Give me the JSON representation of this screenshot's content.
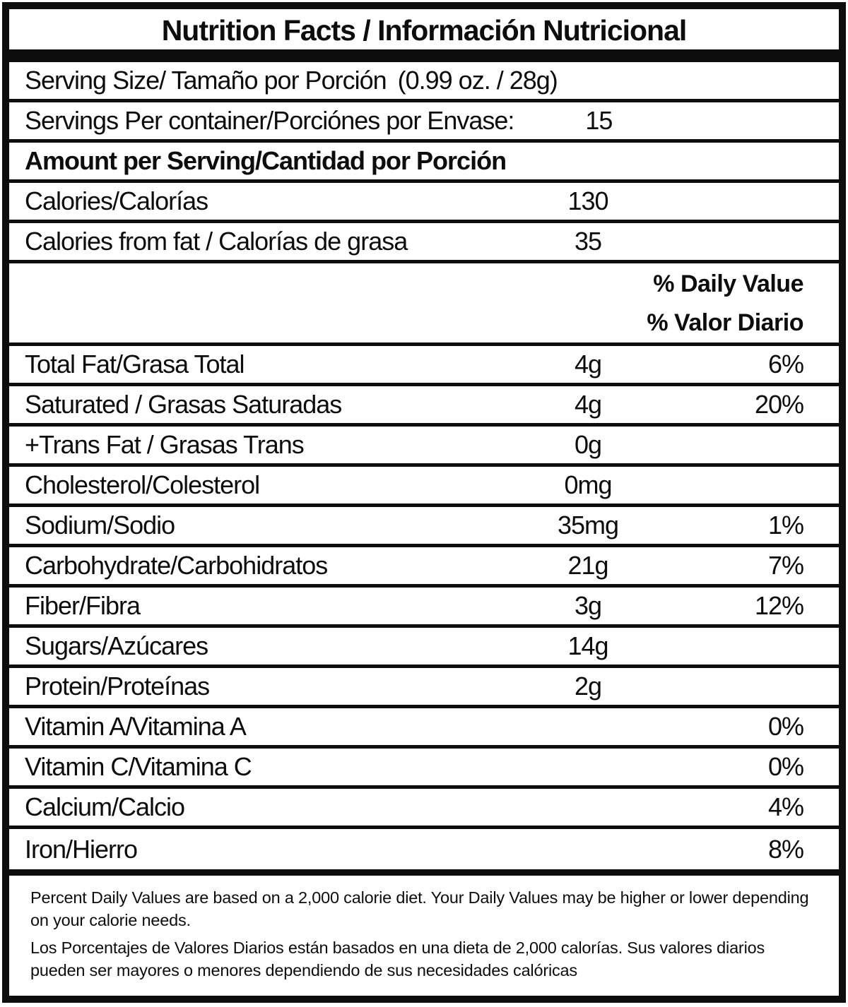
{
  "accent_color": "#0d0d0d",
  "title": "Nutrition Facts / Información Nutricional",
  "serving": {
    "size_label": "Serving Size/ Tamaño por Porción",
    "size_value": "(0.99 oz. / 28g)",
    "per_container_label": "Servings Per container/Porciónes por Envase:",
    "per_container_value": "15"
  },
  "section_headers": {
    "amount_per_serving": "Amount per Serving/Cantidad por Porción",
    "daily_value_en": "% Daily Value",
    "daily_value_es": "% Valor Diario"
  },
  "calorie_rows": [
    {
      "label": "Calories/Calorías",
      "amount": "130",
      "dv": ""
    },
    {
      "label": "Calories from fat / Calorías de grasa",
      "amount": "35",
      "dv": ""
    }
  ],
  "nutrient_rows": [
    {
      "label": "Total Fat/Grasa Total",
      "amount": "4g",
      "dv": "6%"
    },
    {
      "label": "Saturated / Grasas Saturadas",
      "amount": "4g",
      "dv": "20%"
    },
    {
      "label": "+Trans Fat / Grasas Trans",
      "amount": "0g",
      "dv": ""
    },
    {
      "label": "Cholesterol/Colesterol",
      "amount": "0mg",
      "dv": ""
    },
    {
      "label": "Sodium/Sodio",
      "amount": "35mg",
      "dv": "1%"
    },
    {
      "label": "Carbohydrate/Carbohidratos",
      "amount": "21g",
      "dv": "7%"
    },
    {
      "label": "Fiber/Fibra",
      "amount": "3g",
      "dv": "12%"
    },
    {
      "label": "Sugars/Azúcares",
      "amount": "14g",
      "dv": ""
    },
    {
      "label": "Protein/Proteínas",
      "amount": "2g",
      "dv": ""
    }
  ],
  "micronutrient_rows": [
    {
      "label": "Vitamin A/Vitamina A",
      "amount": "",
      "dv": "0%"
    },
    {
      "label": "Vitamin C/Vitamina C",
      "amount": "",
      "dv": "0%"
    },
    {
      "label": "Calcium/Calcio",
      "amount": "",
      "dv": "4%"
    },
    {
      "label": "Iron/Hierro",
      "amount": "",
      "dv": "8%"
    }
  ],
  "footnotes": {
    "en": "Percent Daily Values are based on a 2,000 calorie diet. Your Daily Values may be higher or lower depending on your calorie needs.",
    "es": "Los Porcentajes de Valores Diarios están basados en una dieta de 2,000 calorías. Sus valores diarios pueden ser mayores o menores dependiendo de sus necesidades calóricas"
  }
}
